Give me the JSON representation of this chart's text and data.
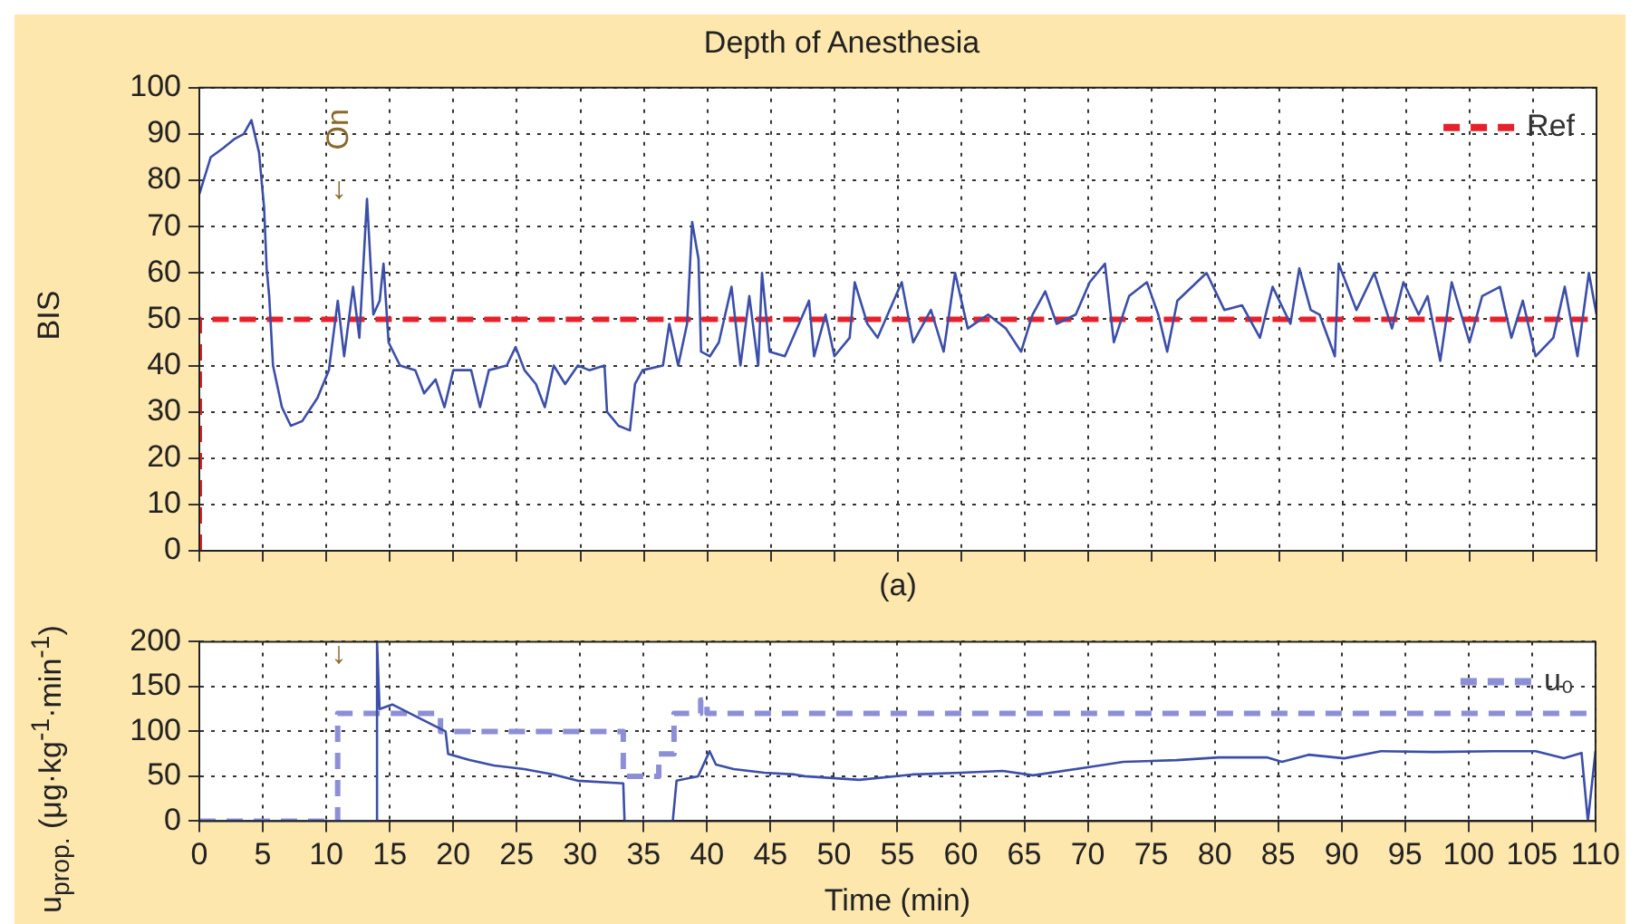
{
  "chart_data": [
    {
      "type": "line",
      "title": "Depth of Anesthesia",
      "ylabel": "BIS",
      "annotations": [
        "On",
        "↓",
        "(a)"
      ],
      "xlim": [
        0,
        110
      ],
      "xticks": [
        {
          "value": 0,
          "label": null
        },
        {
          "value": 5,
          "label": null
        },
        {
          "value": 10,
          "label": null
        },
        {
          "value": 15,
          "label": null
        },
        {
          "value": 20,
          "label": null
        },
        {
          "value": 25,
          "label": null
        },
        {
          "value": 30,
          "label": null
        },
        {
          "value": 35,
          "label": null
        },
        {
          "value": 40,
          "label": null
        },
        {
          "value": 45,
          "label": null
        },
        {
          "value": 50,
          "label": null
        },
        {
          "value": 55,
          "label": null
        },
        {
          "value": 60,
          "label": null
        },
        {
          "value": 65,
          "label": null
        },
        {
          "value": 70,
          "label": null
        },
        {
          "value": 75,
          "label": null
        },
        {
          "value": 80,
          "label": null
        },
        {
          "value": 85,
          "label": null
        },
        {
          "value": 90,
          "label": null
        },
        {
          "value": 95,
          "label": null
        },
        {
          "value": 100,
          "label": null
        },
        {
          "value": 105,
          "label": null
        },
        {
          "value": 110,
          "label": null
        }
      ],
      "ylim": [
        0,
        100
      ],
      "yticks": [
        0,
        10,
        20,
        30,
        40,
        50,
        60,
        70,
        80,
        90,
        100
      ],
      "tick_labels": "y",
      "grid": true,
      "legend": "top right",
      "marker": "none",
      "series": [
        {
          "color": "#3b4ea8",
          "line_style": "solid",
          "x": [
            0,
            0.9,
            1.9,
            2.8,
            3.5,
            4.1,
            4.7,
            5.1,
            5.3,
            5.5,
            5.8,
            6.5,
            7.2,
            8.1,
            9.3,
            10.2,
            10.9,
            11.4,
            12.1,
            12.6,
            13.2,
            13.7,
            14.2,
            14.5,
            14.9,
            15.8,
            17,
            17.7,
            18.6,
            19.3,
            20,
            21.4,
            22.1,
            22.8,
            24.2,
            24.9,
            25.6,
            26.5,
            27.2,
            27.9,
            28.8,
            29.8,
            30.7,
            31.9,
            32.1,
            33,
            33.9,
            34.3,
            34.9,
            36.5,
            37,
            37.7,
            38.4,
            38.8,
            39.3,
            39.5,
            40.2,
            40.9,
            41.9,
            42.6,
            43.3,
            44,
            44.3,
            44.9,
            46.1,
            48,
            48.4,
            49.3,
            50,
            51.2,
            51.6,
            52.6,
            53.4,
            55.3,
            56.2,
            57.6,
            58.6,
            59.5,
            60.5,
            62.1,
            63.5,
            64.7,
            65.6,
            66.6,
            67.5,
            69,
            70.1,
            71.3,
            72,
            73.2,
            74.6,
            75.5,
            76.2,
            77,
            79.3,
            80.7,
            82.1,
            83.5,
            84.5,
            85.9,
            86.6,
            87.5,
            88.2,
            89.4,
            89.7,
            91.1,
            92.5,
            93.9,
            94.8,
            96,
            96.7,
            97.7,
            98.6,
            100,
            101,
            102.4,
            103.3,
            104.2,
            105.2,
            106.6,
            107.5,
            108.5,
            109.4,
            110
          ],
          "values": [
            77,
            85,
            87,
            89,
            90,
            93,
            86,
            74,
            61,
            55,
            40,
            31,
            27,
            28,
            33,
            39,
            54,
            42,
            57,
            46,
            76,
            51,
            54,
            62,
            45,
            40,
            39,
            34,
            37,
            31,
            39,
            39,
            31,
            39,
            40,
            44,
            39,
            36,
            31,
            40,
            36,
            40,
            39,
            40,
            30,
            27,
            26,
            36,
            39,
            40,
            49,
            40,
            49,
            71,
            63,
            43,
            42,
            45,
            57,
            40,
            55,
            40,
            60,
            43,
            42,
            54,
            42,
            51,
            42,
            46,
            58,
            49,
            46,
            58,
            45,
            52,
            43,
            60,
            48,
            51,
            48,
            43,
            51,
            56,
            49,
            51,
            58,
            62,
            45,
            55,
            58,
            51,
            43,
            54,
            60,
            52,
            53,
            46,
            57,
            49,
            61,
            52,
            51,
            42,
            62,
            52,
            60,
            48,
            58,
            51,
            55,
            41,
            58,
            45,
            55,
            57,
            46,
            54,
            42,
            46,
            57,
            42,
            60,
            51
          ]
        },
        {
          "name": "Ref",
          "color": "#e8202a",
          "line_style": "dashed",
          "x": [
            0,
            0,
            110
          ],
          "values": [
            0,
            50,
            50
          ]
        }
      ]
    },
    {
      "type": "line",
      "xlabel": "Time (min)",
      "ylabel": "u$_{prop.}$ (μg·kg$^{-1}$·min$^{-1}$)",
      "annotations": [
        "↓"
      ],
      "xlim": [
        0,
        110
      ],
      "xticks": [
        0,
        5,
        10,
        15,
        20,
        25,
        30,
        35,
        40,
        45,
        50,
        55,
        60,
        65,
        70,
        75,
        80,
        85,
        90,
        95,
        100,
        105,
        110
      ],
      "ylim": [
        0,
        200
      ],
      "yticks": [
        0,
        50,
        100,
        150,
        200
      ],
      "grid": true,
      "legend": "top right",
      "marker": "none",
      "series": [
        {
          "color": "#3b4ea8",
          "line_style": "solid",
          "x": [
            0,
            14,
            14,
            14.2,
            15.2,
            19.4,
            19.6,
            21.3,
            23.2,
            25.6,
            27.9,
            29.8,
            33.4,
            33.5,
            37.3,
            37.6,
            39.3,
            40.2,
            40.7,
            42.1,
            44.5,
            46.9,
            47.7,
            52,
            56.2,
            60,
            63.3,
            65.7,
            70,
            72.8,
            77,
            80.3,
            84.1,
            85.3,
            87.4,
            90.2,
            93.1,
            97.3,
            102,
            105.3,
            107.5,
            108.9,
            109.4,
            110
          ],
          "values": [
            0,
            0,
            200,
            125,
            130,
            100,
            75,
            68,
            62,
            58,
            52,
            45,
            42,
            0,
            0,
            45,
            50,
            78,
            63,
            58,
            54,
            52,
            50,
            46,
            52,
            54,
            56,
            51,
            60,
            66,
            68,
            71,
            71,
            66,
            74,
            70,
            78,
            77,
            78,
            78,
            70,
            76,
            0,
            78
          ]
        },
        {
          "name": "u₀",
          "color": "#8c8fd6",
          "line_style": "dashed",
          "x": [
            0,
            10.9,
            10.9,
            19,
            19,
            33.4,
            33.4,
            36.2,
            36.2,
            37.4,
            37.4,
            39.5,
            39.5,
            40,
            40,
            110
          ],
          "values": [
            0,
            0,
            120,
            120,
            100,
            100,
            50,
            50,
            75,
            75,
            120,
            120,
            135,
            135,
            120,
            120
          ]
        }
      ]
    }
  ]
}
